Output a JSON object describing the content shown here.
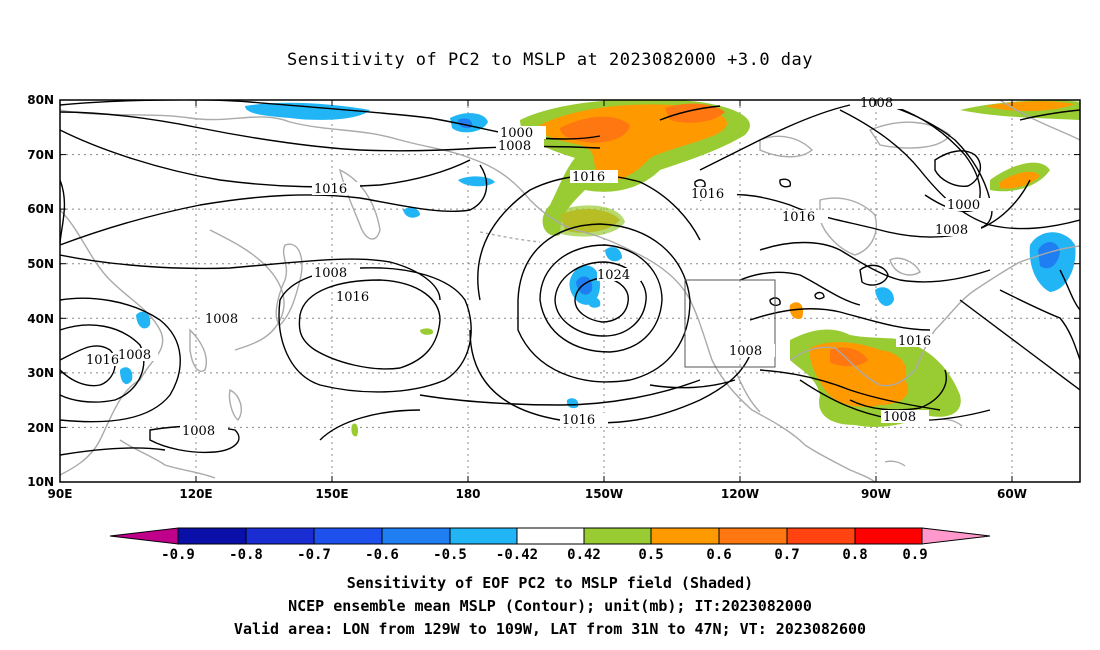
{
  "title": "Sensitivity of PC2 to MSLP at 2023082000 +3.0 day",
  "lat_labels": [
    "80N",
    "70N",
    "60N",
    "50N",
    "40N",
    "30N",
    "20N",
    "10N"
  ],
  "lon_labels": [
    "90E",
    "120E",
    "150E",
    "180",
    "150W",
    "120W",
    "90W",
    "60W"
  ],
  "contour_labels": [
    "1000",
    "1008",
    "1016",
    "1016",
    "1008",
    "1016",
    "1008",
    "1016",
    "1008",
    "1024",
    "1016",
    "1016",
    "1008",
    "1016",
    "1008",
    "1008",
    "1000",
    "1008",
    "1008",
    "1016",
    "1008"
  ],
  "colorbar": {
    "labels": [
      "-0.9",
      "-0.8",
      "-0.7",
      "-0.6",
      "-0.5",
      "-0.42",
      "0.42",
      "0.5",
      "0.6",
      "0.7",
      "0.8",
      "0.9"
    ],
    "colors": [
      "#c0008a",
      "#0a0fa8",
      "#1a2dd2",
      "#1e50ee",
      "#1f7ff2",
      "#22b5f5",
      "#2bd4ff",
      "#ffffff",
      "#99cc33",
      "#ff9900",
      "#ff7711",
      "#ff4411",
      "#ff0000",
      "#ff99cc"
    ]
  },
  "valid_box": "LON 129W-109W, LAT 31N-47N",
  "caption": {
    "line1": "Sensitivity of EOF PC2 to MSLP field (Shaded)",
    "line2": "NCEP ensemble mean MSLP (Contour); unit(mb); IT:2023082000",
    "line3": "Valid area: LON from 129W to 109W, LAT from 31N to 47N; VT: 2023082600"
  }
}
